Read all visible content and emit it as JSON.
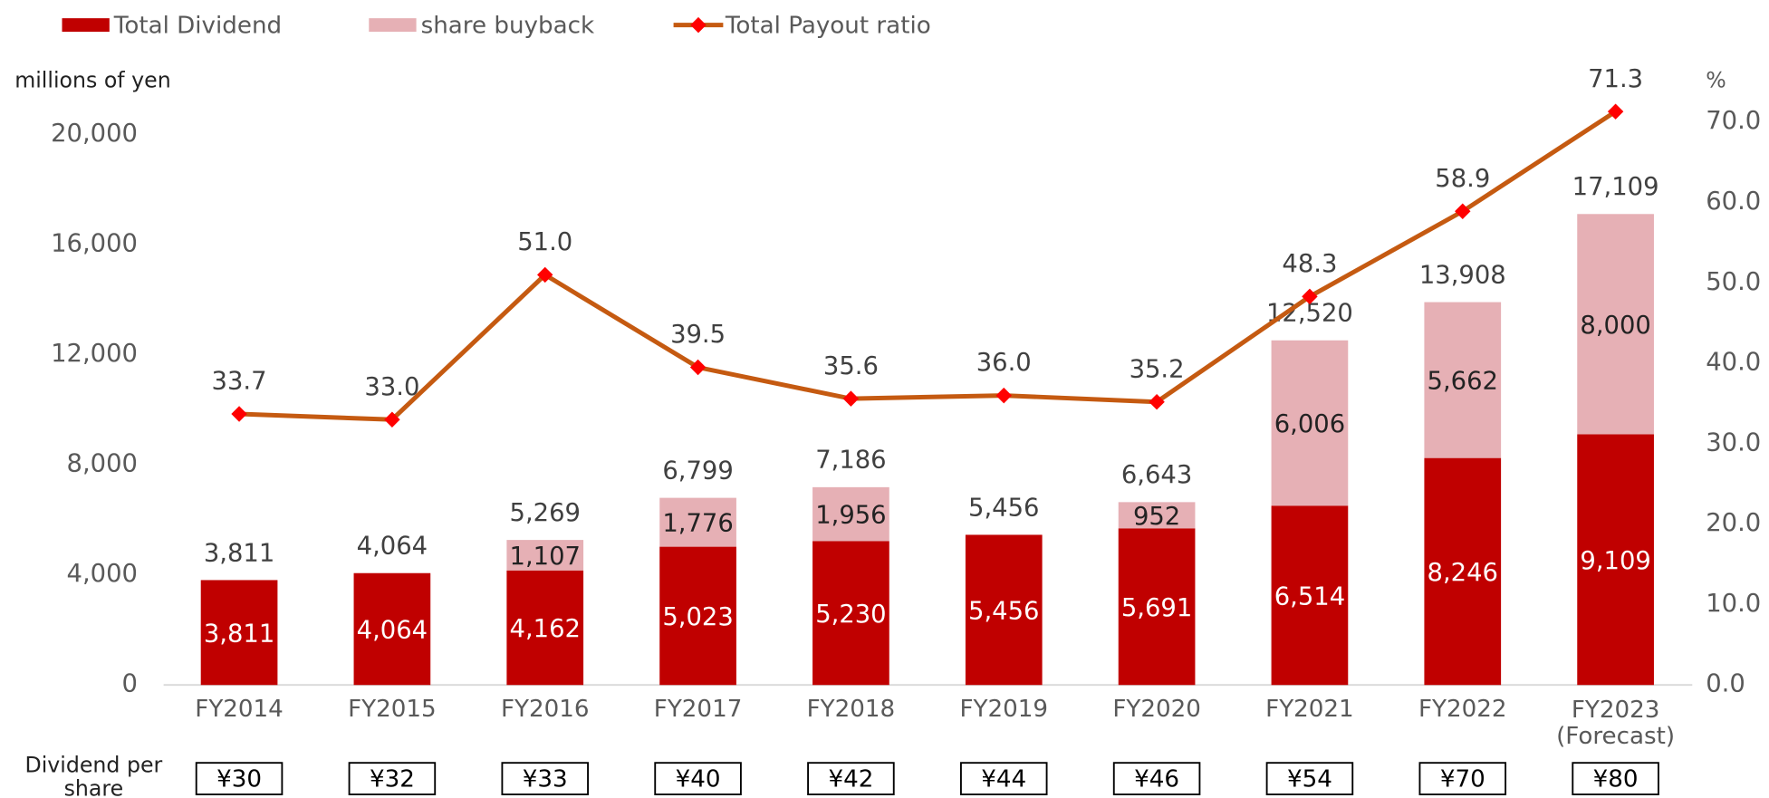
{
  "chart_data": {
    "type": "bar",
    "y_axis_label": "millions of yen",
    "y2_axis_label": "%",
    "categories": [
      "FY2014",
      "FY2015",
      "FY2016",
      "FY2017",
      "FY2018",
      "FY2019",
      "FY2020",
      "FY2021",
      "FY2022",
      "FY2023 (Forecast)"
    ],
    "series": [
      {
        "name": "Total Dividend",
        "color": "#c00000",
        "values": [
          3811,
          4064,
          4162,
          5023,
          5230,
          5456,
          5691,
          6514,
          8246,
          9109
        ],
        "value_labels": [
          "3,811",
          "4,064",
          "4,162",
          "5,023",
          "5,230",
          "5,456",
          "5,691",
          "6,514",
          "8,246",
          "9,109"
        ]
      },
      {
        "name": "share buyback",
        "color": "#e6b0b5",
        "values": [
          null,
          null,
          1107,
          1776,
          1956,
          null,
          952,
          6006,
          5662,
          8000
        ],
        "value_labels": [
          null,
          null,
          "1,107",
          "1,776",
          "1,956",
          null,
          "952",
          "6,006",
          "5,662",
          "8,000"
        ]
      },
      {
        "name": "Total Payout ratio",
        "type": "line",
        "axis": "y2",
        "color": "#c55a11",
        "marker_color": "#ff0000",
        "values": [
          33.7,
          33.0,
          51.0,
          39.5,
          35.6,
          36.0,
          35.2,
          48.3,
          58.9,
          71.3
        ],
        "value_labels": [
          "33.7",
          "33.0",
          "51.0",
          "39.5",
          "35.6",
          "36.0",
          "35.2",
          "48.3",
          "58.9",
          "71.3"
        ]
      }
    ],
    "total_labels": [
      "3,811",
      "4,064",
      "5,269",
      "6,799",
      "7,186",
      "5,456",
      "6,643",
      "12,520",
      "13,908",
      "17,109"
    ],
    "ylim": [
      0,
      20000
    ],
    "yticks": [
      0,
      {
        "value": 4000,
        "label": "4,000"
      },
      {
        "value": 8000,
        "label": "8,000"
      },
      {
        "value": 12000,
        "label": "12,000"
      },
      {
        "value": 16000,
        "label": "16,000"
      },
      {
        "value": 20000,
        "label": "20,000"
      }
    ],
    "y2lim": [
      0,
      70
    ],
    "y2ticks": [
      {
        "value": 0,
        "label": "0.0"
      },
      {
        "value": 10,
        "label": "10.0"
      },
      {
        "value": 20,
        "label": "20.0"
      },
      {
        "value": 30,
        "label": "30.0"
      },
      {
        "value": 40,
        "label": "40.0"
      },
      {
        "value": 50,
        "label": "50.0"
      },
      {
        "value": 60,
        "label": "60.0"
      },
      {
        "value": 70,
        "label": "70.0"
      }
    ],
    "dividend_per_share": {
      "label": "Dividend per share",
      "values": [
        "¥30",
        "¥32",
        "¥33",
        "¥40",
        "¥42",
        "¥44",
        "¥46",
        "¥54",
        "¥70",
        "¥80"
      ]
    }
  }
}
